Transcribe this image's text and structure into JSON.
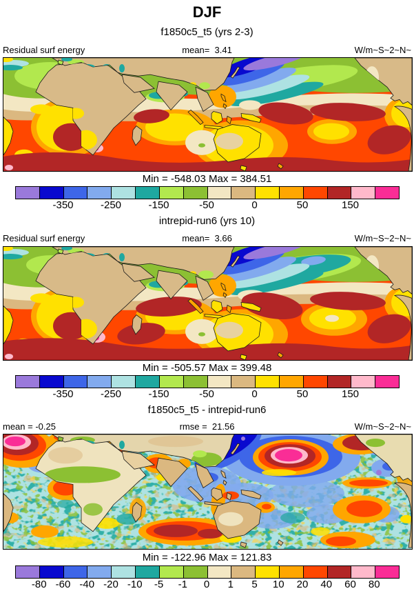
{
  "title": "DJF",
  "palette": [
    "#9A79DB",
    "#0909CF",
    "#3E66E8",
    "#82AAEE",
    "#AEE2E2",
    "#1FA8A0",
    "#B2E84E",
    "#8CC033",
    "#F3E7C3",
    "#DBB880",
    "#FFE100",
    "#FFA600",
    "#FF4700",
    "#B22626",
    "#FFB9CB",
    "#FA2D96"
  ],
  "panels": [
    {
      "subtitle": "f1850c5_t5 (yrs 2-3)",
      "header_left": "Residual surf energy",
      "header_center": "mean=  3.41",
      "header_right": "W/m~S~2~N~",
      "minmax": "Min = -548.03 Max = 384.51"
    },
    {
      "subtitle": "intrepid-run6 (yrs 10)",
      "header_left": "Residual surf energy",
      "header_center": "mean=  3.66",
      "header_right": "W/m~S~2~N~",
      "minmax": "Min = -505.57 Max = 399.48"
    },
    {
      "subtitle": "f1850c5_t5 - intrepid-run6",
      "header_left": "mean = -0.25",
      "header_center": "rmse =  21.56",
      "header_right": "W/m~S~2~N~",
      "minmax": "Min = -122.96 Max = 121.83"
    }
  ],
  "colorbars": [
    {
      "labels": [
        "-350",
        "-250",
        "-150",
        "-50",
        "0",
        "50",
        "150"
      ],
      "boundaries": [
        2,
        4,
        6,
        8,
        10,
        12,
        14
      ]
    },
    {
      "labels": [
        "-350",
        "-250",
        "-150",
        "-50",
        "0",
        "50",
        "150"
      ],
      "boundaries": [
        2,
        4,
        6,
        8,
        10,
        12,
        14
      ]
    },
    {
      "labels": [
        "-80",
        "-60",
        "-40",
        "-20",
        "-10",
        "-5",
        "-1",
        "0",
        "1",
        "5",
        "10",
        "20",
        "40",
        "60",
        "80"
      ],
      "boundaries": [
        1,
        2,
        3,
        4,
        5,
        6,
        7,
        8,
        9,
        10,
        11,
        12,
        13,
        14,
        15
      ]
    }
  ],
  "chart_data": [
    {
      "type": "heatmap",
      "subtype": "filled-contour-global-map",
      "season": "DJF",
      "title": "f1850c5_t5 (yrs 2-3)",
      "field": "Residual surf energy",
      "units": "W/m~S~2~N~",
      "mean": 3.41,
      "min": -548.03,
      "max": 384.51,
      "n_color_bins": 16,
      "labeled_levels": [
        -350,
        -250,
        -150,
        -50,
        0,
        50,
        150
      ],
      "legend_position": "bottom"
    },
    {
      "type": "heatmap",
      "subtype": "filled-contour-global-map",
      "season": "DJF",
      "title": "intrepid-run6 (yrs 10)",
      "field": "Residual surf energy",
      "units": "W/m~S~2~N~",
      "mean": 3.66,
      "min": -505.57,
      "max": 399.48,
      "n_color_bins": 16,
      "labeled_levels": [
        -350,
        -250,
        -150,
        -50,
        0,
        50,
        150
      ],
      "legend_position": "bottom"
    },
    {
      "type": "heatmap",
      "subtype": "filled-contour-difference-map",
      "season": "DJF",
      "title": "f1850c5_t5 - intrepid-run6",
      "field": "Residual surf energy",
      "units": "W/m~S~2~N~",
      "mean": -0.25,
      "rmse": 21.56,
      "min": -122.96,
      "max": 121.83,
      "n_color_bins": 16,
      "levels": [
        -80,
        -60,
        -40,
        -20,
        -10,
        -5,
        -1,
        0,
        1,
        5,
        10,
        20,
        40,
        60,
        80
      ],
      "legend_position": "bottom"
    }
  ]
}
